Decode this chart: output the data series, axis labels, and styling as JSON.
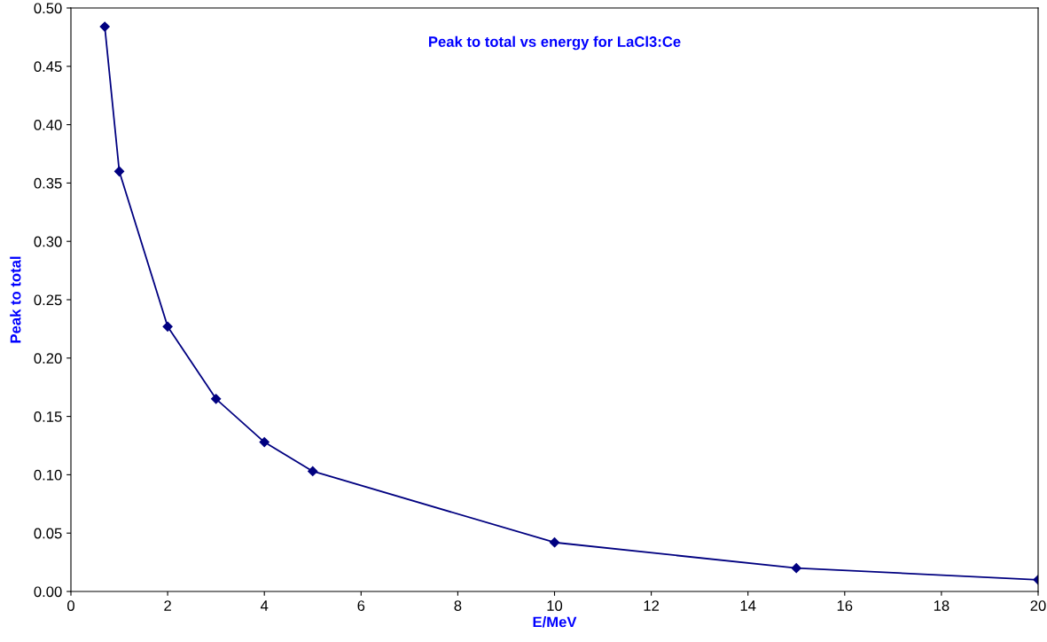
{
  "chart_data": {
    "type": "line",
    "title": "Peak to total vs energy for LaCl3:Ce",
    "xlabel": "E/MeV",
    "ylabel": "Peak to total",
    "x": [
      0.7,
      1,
      2,
      3,
      4,
      5,
      10,
      15,
      20
    ],
    "series": [
      {
        "color": "#000080",
        "values": [
          0.484,
          0.36,
          0.227,
          0.165,
          0.128,
          0.103,
          0.042,
          0.02,
          0.01
        ]
      }
    ],
    "xlim": [
      0,
      20
    ],
    "xticks": [
      0,
      2,
      4,
      6,
      8,
      10,
      12,
      14,
      16,
      18,
      20
    ],
    "ylim": [
      0,
      0.5
    ],
    "yticks": [
      {
        "value": 0,
        "label": "0.00"
      },
      {
        "value": 0.05,
        "label": "0.05"
      },
      {
        "value": 0.1,
        "label": "0.10"
      },
      {
        "value": 0.15,
        "label": "0.15"
      },
      {
        "value": 0.2,
        "label": "0.20"
      },
      {
        "value": 0.25,
        "label": "0.25"
      },
      {
        "value": 0.3,
        "label": "0.30"
      },
      {
        "value": 0.35,
        "label": "0.35"
      },
      {
        "value": 0.4,
        "label": "0.40"
      },
      {
        "value": 0.45,
        "label": "0.45"
      },
      {
        "value": 0.5,
        "label": "0.50"
      }
    ],
    "marker": "diamond",
    "line_style": "solid",
    "grid": false,
    "legend": false
  }
}
